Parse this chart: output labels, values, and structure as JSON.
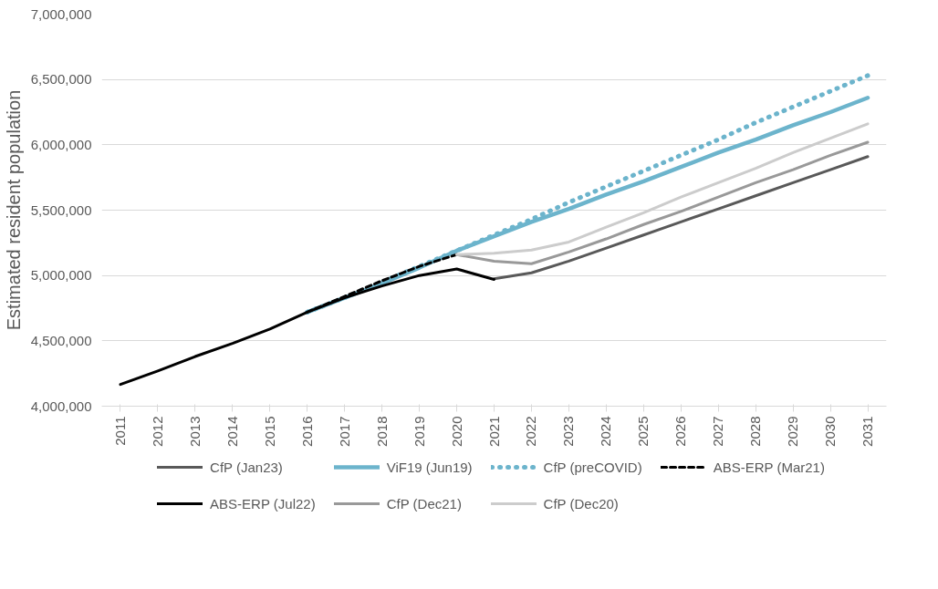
{
  "chart_data": {
    "type": "line",
    "ylabel": "Estimated resident population",
    "series": [
      {
        "name": "CfP (Jan23)",
        "color": "#595959",
        "line_style": "solid",
        "x": [
          2021,
          2022,
          2023,
          2024,
          2025,
          2026,
          2027,
          2028,
          2029,
          2030,
          2031
        ],
        "values": [
          4975000,
          5020000,
          5110000,
          5210000,
          5310000,
          5410000,
          5510000,
          5610000,
          5710000,
          5810000,
          5910000
        ]
      },
      {
        "name": "ViF19 (Jun19)",
        "color": "#6cb4cc",
        "line_style": "solid",
        "x": [
          2016,
          2017,
          2018,
          2019,
          2020,
          2021,
          2022,
          2023,
          2024,
          2025,
          2026,
          2027,
          2028,
          2029,
          2030,
          2031
        ],
        "values": [
          4720000,
          4830000,
          4940000,
          5060000,
          5190000,
          5300000,
          5410000,
          5510000,
          5620000,
          5720000,
          5830000,
          5940000,
          6040000,
          6150000,
          6250000,
          6360000
        ]
      },
      {
        "name": "CfP (preCOVID)",
        "color": "#6cb4cc",
        "line_style": "dotted",
        "x": [
          2016,
          2017,
          2018,
          2019,
          2020,
          2021,
          2022,
          2023,
          2024,
          2025,
          2026,
          2027,
          2028,
          2029,
          2030,
          2031
        ],
        "values": [
          4720000,
          4830000,
          4950000,
          5070000,
          5190000,
          5310000,
          5430000,
          5560000,
          5680000,
          5800000,
          5920000,
          6040000,
          6170000,
          6290000,
          6410000,
          6530000
        ]
      },
      {
        "name": "ABS-ERP (Mar21)",
        "color": "#000000",
        "line_style": "dashed",
        "x": [
          2016,
          2017,
          2018,
          2019,
          2020
        ],
        "values": [
          4720000,
          4840000,
          4960000,
          5070000,
          5160000
        ]
      },
      {
        "name": "ABS-ERP (Jul22)",
        "color": "#000000",
        "line_style": "solid",
        "x": [
          2011,
          2012,
          2013,
          2014,
          2015,
          2016,
          2017,
          2018,
          2019,
          2020,
          2021
        ],
        "values": [
          4166000,
          4270000,
          4380000,
          4480000,
          4590000,
          4720000,
          4830000,
          4920000,
          5000000,
          5050000,
          4970000
        ]
      },
      {
        "name": "CfP (Dec21)",
        "color": "#999999",
        "line_style": "solid",
        "x": [
          2020,
          2021,
          2022,
          2023,
          2024,
          2025,
          2026,
          2027,
          2028,
          2029,
          2030,
          2031
        ],
        "values": [
          5160000,
          5110000,
          5090000,
          5180000,
          5280000,
          5390000,
          5490000,
          5600000,
          5710000,
          5810000,
          5920000,
          6020000
        ]
      },
      {
        "name": "CfP (Dec20)",
        "color": "#cccccc",
        "line_style": "solid",
        "x": [
          2020,
          2021,
          2022,
          2023,
          2024,
          2025,
          2026,
          2027,
          2028,
          2029,
          2030,
          2031
        ],
        "values": [
          5160000,
          5170000,
          5195000,
          5256000,
          5370000,
          5480000,
          5600000,
          5710000,
          5820000,
          5940000,
          6050000,
          6160000
        ]
      }
    ],
    "xlim": [
      2010.5,
      2031.5
    ],
    "xticks": [
      2011,
      2012,
      2013,
      2014,
      2015,
      2016,
      2017,
      2018,
      2019,
      2020,
      2021,
      2022,
      2023,
      2024,
      2025,
      2026,
      2027,
      2028,
      2029,
      2030,
      2031
    ],
    "ylim": [
      4000000,
      7000000
    ],
    "yticks": [
      {
        "value": 4000000,
        "label": "4,000,000"
      },
      {
        "value": 4500000,
        "label": "4,500,000"
      },
      {
        "value": 5000000,
        "label": "5,000,000"
      },
      {
        "value": 5500000,
        "label": "5,500,000"
      },
      {
        "value": 6000000,
        "label": "6,000,000"
      },
      {
        "value": 6500000,
        "label": "6,500,000"
      },
      {
        "value": 7000000,
        "label": "7,000,000"
      }
    ],
    "grid": "y",
    "legend": "bottom",
    "marker": "none"
  }
}
